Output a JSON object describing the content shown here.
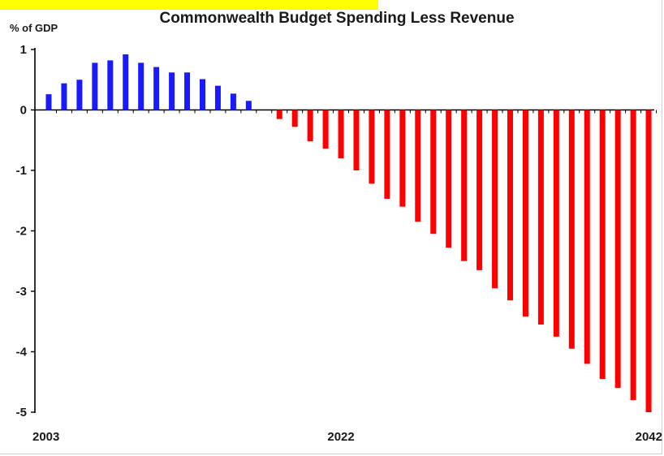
{
  "chart_data": {
    "type": "bar",
    "title": "Commonwealth Budget Spending Less Revenue",
    "ylabel": "% of GDP",
    "xlabel": "",
    "ylim": [
      -5,
      1
    ],
    "y_ticks": [
      "1",
      "0",
      "-1",
      "-2",
      "-3",
      "-4",
      "-5"
    ],
    "x_tick_labels": [
      {
        "year": 2003,
        "label": "2003"
      },
      {
        "year": 2022,
        "label": "2022"
      },
      {
        "year": 2042,
        "label": "2042"
      }
    ],
    "x": [
      2003,
      2004,
      2005,
      2006,
      2007,
      2008,
      2009,
      2010,
      2011,
      2012,
      2013,
      2014,
      2015,
      2016,
      2017,
      2018,
      2019,
      2020,
      2021,
      2022,
      2023,
      2024,
      2025,
      2026,
      2027,
      2028,
      2029,
      2030,
      2031,
      2032,
      2033,
      2034,
      2035,
      2036,
      2037,
      2038,
      2039,
      2040,
      2041,
      2042
    ],
    "values": [
      0.26,
      0.44,
      0.5,
      0.78,
      0.82,
      0.92,
      0.78,
      0.71,
      0.62,
      0.62,
      0.51,
      0.4,
      0.27,
      0.15,
      0,
      -0.15,
      -0.28,
      -0.52,
      -0.64,
      -0.8,
      -1.0,
      -1.22,
      -1.47,
      -1.6,
      -1.85,
      -2.05,
      -2.28,
      -2.5,
      -2.65,
      -2.95,
      -3.15,
      -3.42,
      -3.55,
      -3.75,
      -3.95,
      -4.2,
      -4.45,
      -4.6,
      -4.8,
      -5.0
    ],
    "colors": {
      "positive": "#1a1aff",
      "negative": "#ff0000"
    },
    "grid": false
  }
}
